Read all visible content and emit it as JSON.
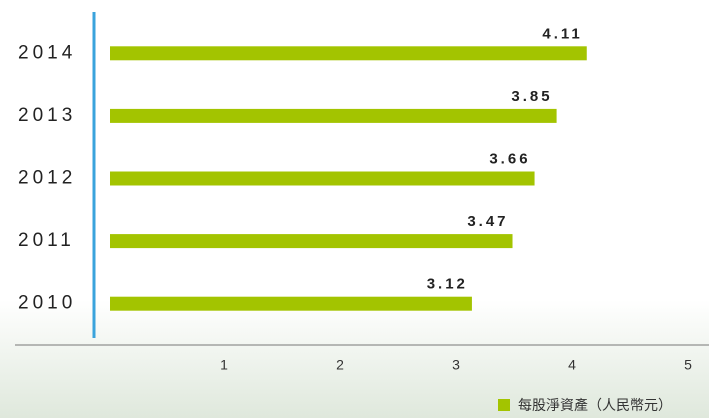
{
  "chart_data": {
    "type": "bar",
    "orientation": "horizontal",
    "categories": [
      "2014",
      "2013",
      "2012",
      "2011",
      "2010"
    ],
    "series": [
      {
        "name": "每股淨資產（人民幣元）",
        "color": "#a3c400",
        "values": [
          4.11,
          3.85,
          3.66,
          3.47,
          3.12
        ]
      }
    ],
    "xlim": [
      0,
      5
    ],
    "xticks": [
      1,
      2,
      3,
      4,
      5
    ]
  }
}
